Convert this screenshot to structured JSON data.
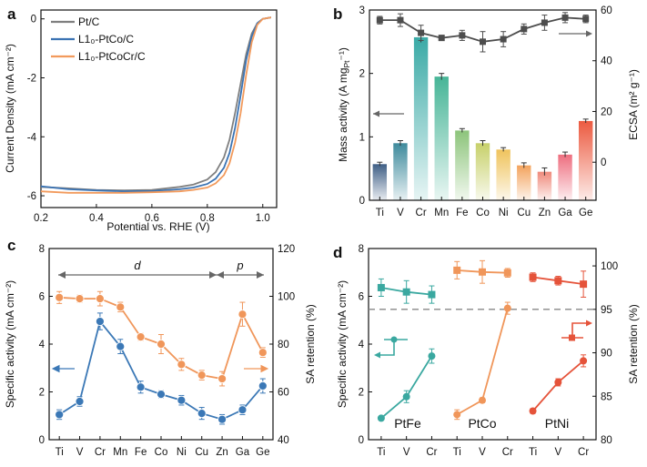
{
  "colors": {
    "pt_c": "#7f7f7f",
    "ptco": "#3b73b3",
    "ptcocr": "#f29a5c",
    "blue": "#3b78b6",
    "orange": "#f0965a",
    "teal": "#3aa8a0",
    "red": "#e5533a",
    "dark": "#4d4d4d"
  },
  "chart_data": [
    {
      "panel": "a",
      "type": "line",
      "xlabel": "Potential vs. RHE (V)",
      "ylabel": "Current Density (mA cm⁻²)",
      "xlim": [
        0.2,
        1.05
      ],
      "ylim": [
        -6.4,
        0.3
      ],
      "xticks": [
        "0.2",
        "0.4",
        "0.6",
        "0.8",
        "1.0"
      ],
      "yticks": [
        "0",
        "-2",
        "-4",
        "-6"
      ],
      "series": [
        {
          "name": "Pt/C",
          "color": "pt_c",
          "x": [
            0.2,
            0.3,
            0.4,
            0.5,
            0.6,
            0.7,
            0.75,
            0.8,
            0.83,
            0.86,
            0.88,
            0.9,
            0.92,
            0.94,
            0.96,
            0.98,
            1.0,
            1.03
          ],
          "y": [
            -5.7,
            -5.75,
            -5.8,
            -5.82,
            -5.8,
            -5.7,
            -5.62,
            -5.45,
            -5.2,
            -4.7,
            -4.1,
            -3.2,
            -2.2,
            -1.2,
            -0.5,
            -0.15,
            0,
            0.05
          ]
        },
        {
          "name": "L1₀-PtCo/C",
          "color": "ptco",
          "x": [
            0.2,
            0.3,
            0.4,
            0.5,
            0.6,
            0.7,
            0.75,
            0.8,
            0.83,
            0.86,
            0.88,
            0.9,
            0.92,
            0.94,
            0.96,
            0.98,
            1.0,
            1.03
          ],
          "y": [
            -5.68,
            -5.78,
            -5.82,
            -5.85,
            -5.84,
            -5.78,
            -5.72,
            -5.6,
            -5.42,
            -5.05,
            -4.55,
            -3.7,
            -2.6,
            -1.4,
            -0.6,
            -0.15,
            0,
            0.05
          ]
        },
        {
          "name": "L1₀-PtCoCr/C",
          "color": "ptcocr",
          "x": [
            0.2,
            0.3,
            0.4,
            0.5,
            0.6,
            0.7,
            0.75,
            0.8,
            0.83,
            0.86,
            0.88,
            0.9,
            0.92,
            0.94,
            0.96,
            0.98,
            1.0,
            1.03
          ],
          "y": [
            -5.85,
            -5.9,
            -5.9,
            -5.9,
            -5.88,
            -5.85,
            -5.8,
            -5.72,
            -5.58,
            -5.3,
            -4.9,
            -4.2,
            -3.2,
            -1.9,
            -0.8,
            -0.2,
            0,
            0.05
          ]
        }
      ]
    },
    {
      "panel": "b",
      "type": "bar",
      "ylabel_left": "Mass activity (A mg",
      "ylabel_left_sub": "Pt",
      "ylabel_left_end": "⁻¹)",
      "ylabel_right": "ECSA (m² g⁻¹)",
      "categories": [
        "Ti",
        "V",
        "Cr",
        "Mn",
        "Fe",
        "Co",
        "Ni",
        "Cu",
        "Zn",
        "Ga",
        "Ge"
      ],
      "bar_colors": [
        "#3f5f86",
        "#3e8a9c",
        "#3aaaa6",
        "#47b597",
        "#8cc47a",
        "#c7d06a",
        "#efc35c",
        "#f3a35d",
        "#ef8a7b",
        "#ee6e7f",
        "#ec5a40"
      ],
      "values": [
        0.57,
        0.9,
        2.57,
        1.95,
        1.1,
        0.9,
        0.8,
        0.55,
        0.45,
        0.72,
        1.25
      ],
      "errors": [
        0.03,
        0.04,
        0.08,
        0.05,
        0.03,
        0.04,
        0.03,
        0.04,
        0.06,
        0.04,
        0.03
      ],
      "ylim": [
        0,
        3
      ],
      "yticks": [
        "0",
        "1",
        "2",
        "3"
      ],
      "ecsa": [
        56,
        56,
        51,
        49,
        50,
        47.5,
        48.5,
        52.5,
        55,
        57,
        56.5
      ],
      "ecsa_errors": [
        1.5,
        2.5,
        3,
        1,
        2,
        4,
        3,
        2,
        3,
        2,
        1.5
      ],
      "y2lim": [
        -15,
        60
      ],
      "y2ticks": [
        "0",
        "20",
        "40",
        "60"
      ]
    },
    {
      "panel": "c",
      "type": "line",
      "categories": [
        "Ti",
        "V",
        "Cr",
        "Mn",
        "Fe",
        "Co",
        "Ni",
        "Cu",
        "Zn",
        "Ga",
        "Ge"
      ],
      "ylabel": "Specific activity (mA cm⁻²)",
      "ylabel_right": "SA retention (%)",
      "ylim": [
        0,
        8
      ],
      "yticks": [
        "0",
        "2",
        "4",
        "6",
        "8"
      ],
      "y2lim": [
        40,
        120
      ],
      "y2ticks": [
        "40",
        "60",
        "80",
        "100",
        "120"
      ],
      "specific_activity": [
        1.05,
        1.6,
        4.95,
        3.9,
        2.2,
        1.9,
        1.65,
        1.1,
        0.85,
        1.25,
        2.25
      ],
      "sa_errors": [
        0.2,
        0.2,
        0.35,
        0.3,
        0.25,
        0.15,
        0.2,
        0.25,
        0.2,
        0.2,
        0.3
      ],
      "sa_retention": [
        99.5,
        99,
        99,
        95.5,
        83,
        80,
        71.5,
        67,
        65.5,
        92.5,
        76.5
      ],
      "ret_errors": [
        2.5,
        1.5,
        3,
        2,
        1.5,
        4,
        2.5,
        2,
        3,
        5,
        2
      ],
      "region_d": "d",
      "region_p": "p"
    },
    {
      "panel": "d",
      "type": "line",
      "groups": [
        "PtFe",
        "PtCo",
        "PtNi"
      ],
      "categories": [
        "Ti",
        "V",
        "Cr"
      ],
      "ylabel": "Specific activity (mA cm⁻²)",
      "ylabel_right": "SA retention (%)",
      "ylim": [
        0,
        8
      ],
      "yticks": [
        "0",
        "2",
        "4",
        "6",
        "8"
      ],
      "y2lim": [
        80,
        102
      ],
      "y2ticks": [
        "80",
        "85",
        "90",
        "95",
        "100"
      ],
      "specific_activity": [
        [
          0.9,
          1.8,
          3.5
        ],
        [
          1.05,
          1.65,
          5.5
        ],
        [
          1.2,
          2.4,
          3.3
        ]
      ],
      "sa_errors": [
        [
          0.05,
          0.25,
          0.3
        ],
        [
          0.2,
          0.1,
          0.25
        ],
        [
          0.1,
          0.15,
          0.25
        ]
      ],
      "sa_retention": [
        [
          97.5,
          97,
          96.7
        ],
        [
          99.5,
          99.3,
          99.2
        ],
        [
          98.7,
          98.3,
          97.9
        ]
      ],
      "ret_errors": [
        [
          1,
          1.3,
          1
        ],
        [
          1,
          1.3,
          0.5
        ],
        [
          0.5,
          0.5,
          1.5
        ]
      ],
      "threshold_retention": 95
    }
  ],
  "labels": {
    "panel_a": "a",
    "panel_b": "b",
    "panel_c": "c",
    "panel_d": "d",
    "legend_a": [
      "Pt/C",
      "L1₀-PtCo/C",
      "L1₀-PtCoCr/C"
    ],
    "d_groups": [
      "PtFe",
      "PtCo",
      "PtNi"
    ]
  }
}
